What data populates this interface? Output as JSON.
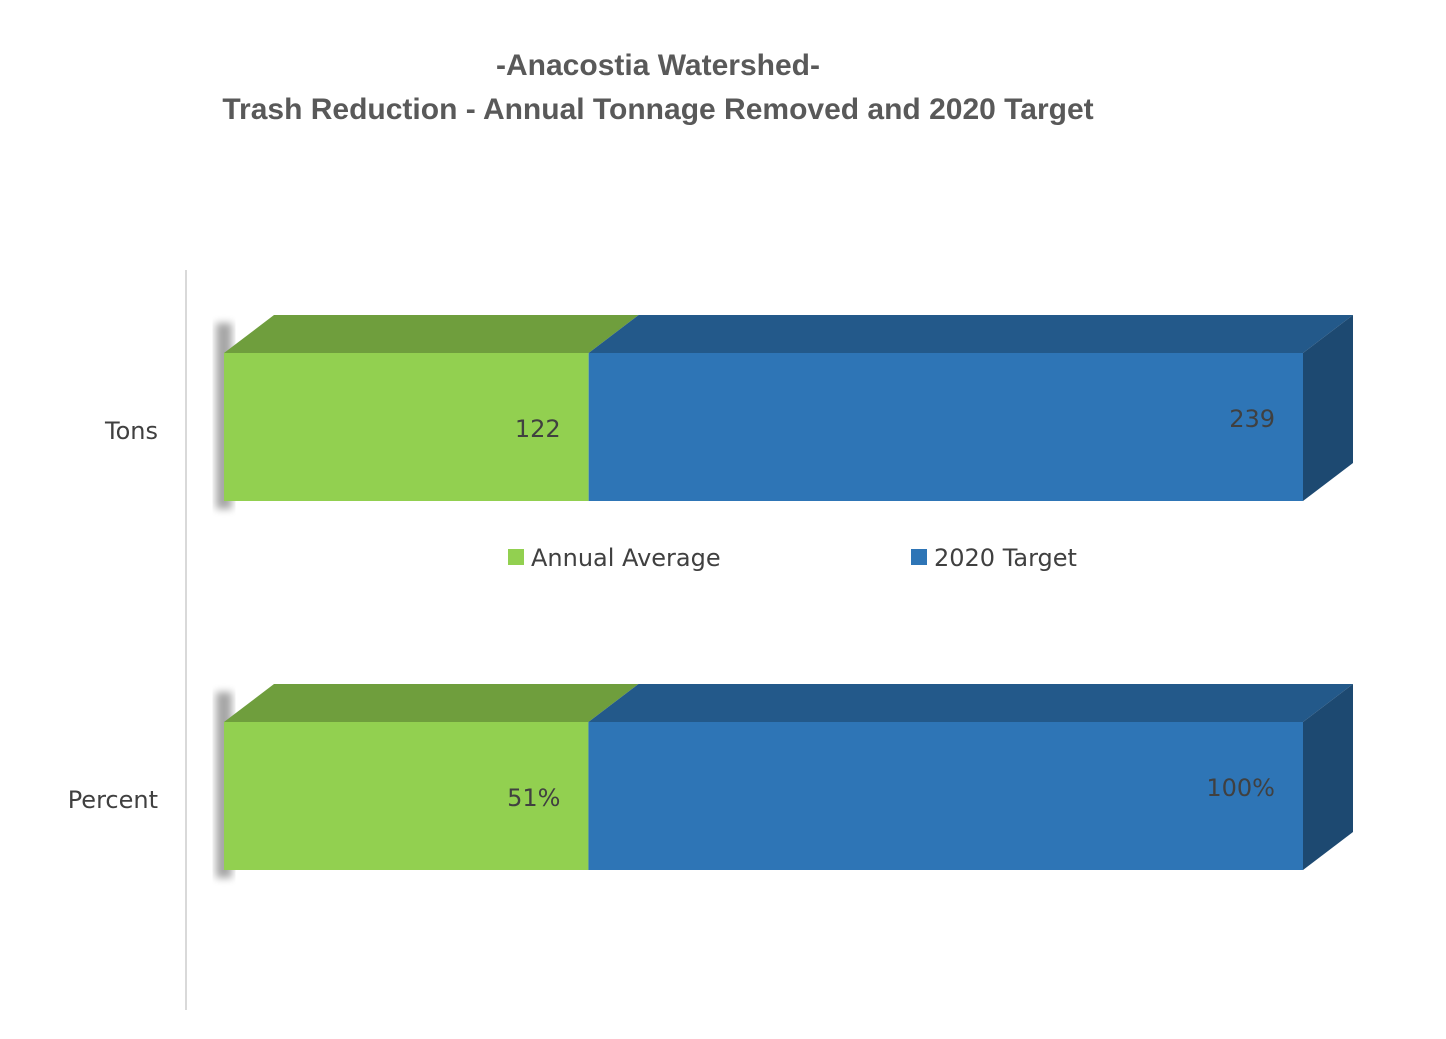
{
  "chart_data": {
    "type": "bar",
    "orientation": "horizontal",
    "stacked": true,
    "style_3d": true,
    "title": "-Anacostia Watershed-",
    "subtitle": "Trash Reduction - Annual Tonnage Removed and 2020 Target",
    "categories": [
      "Tons",
      "Percent"
    ],
    "series": [
      {
        "name": "Annual Average",
        "color": "#92D050",
        "values": [
          122,
          51
        ],
        "data_labels": [
          "122",
          "51%"
        ]
      },
      {
        "name": "2020 Target",
        "color": "#2E75B6",
        "values": [
          239,
          100
        ],
        "data_labels": [
          "239",
          "100%"
        ]
      }
    ],
    "legend_position": "middle",
    "grid": false
  }
}
